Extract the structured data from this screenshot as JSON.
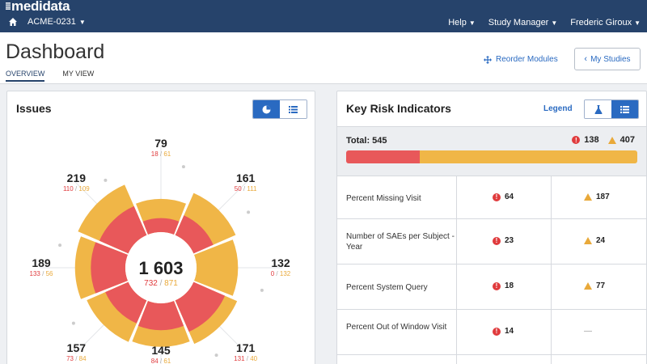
{
  "topbar": {
    "brand": "medidata",
    "study": "ACME-0231",
    "nav": [
      "Help",
      "Study Manager",
      "Frederic Giroux"
    ]
  },
  "header": {
    "title": "Dashboard",
    "tabs": [
      "OVERVIEW",
      "MY VIEW"
    ],
    "reorder_label": "Reorder Modules",
    "my_studies_label": "My Studies"
  },
  "issues": {
    "title": "Issues",
    "total": "1 603",
    "total_red": "732",
    "total_amber": "871",
    "segments": [
      {
        "total": "79",
        "red": "18",
        "amber": "61"
      },
      {
        "total": "161",
        "red": "50",
        "amber": "111"
      },
      {
        "total": "132",
        "red": "0",
        "amber": "132"
      },
      {
        "total": "171",
        "red": "131",
        "amber": "40"
      },
      {
        "total": "145",
        "red": "84",
        "amber": "61"
      },
      {
        "total": "157",
        "red": "73",
        "amber": "84"
      },
      {
        "total": "189",
        "red": "133",
        "amber": "56"
      },
      {
        "total": "219",
        "red": "110",
        "amber": "109"
      }
    ]
  },
  "kri": {
    "title": "Key Risk Indicators",
    "legend_label": "Legend",
    "total_label": "Total: 545",
    "total_red": "138",
    "total_amber": "407",
    "red_fraction": 0.253,
    "rows": [
      {
        "name": "Percent Missing Visit",
        "red": "64",
        "amber": "187"
      },
      {
        "name": "Number of SAEs per Subject - Year",
        "red": "23",
        "amber": "24"
      },
      {
        "name": "Percent System Query",
        "red": "18",
        "amber": "77"
      },
      {
        "name": "Percent Out of Window Visit",
        "red": "14",
        "amber": "—"
      }
    ]
  },
  "colors": {
    "header": "#26436b",
    "red": "#e8585a",
    "amber": "#f0b647",
    "accent": "#2a6ac1"
  }
}
